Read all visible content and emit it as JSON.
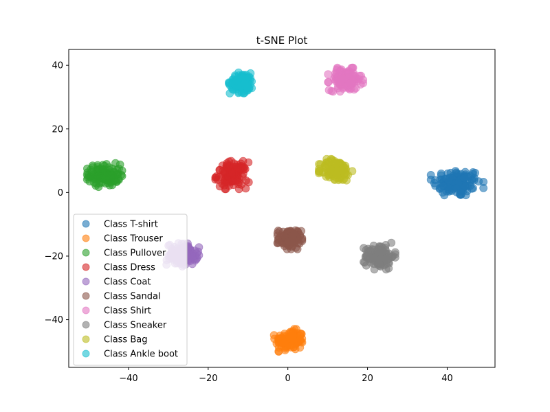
{
  "chart_data": {
    "type": "scatter",
    "title": "t-SNE Plot",
    "xlabel": "",
    "ylabel": "",
    "xlim": [
      -55,
      52
    ],
    "ylim": [
      -55,
      45
    ],
    "xticks": [
      -40,
      -20,
      0,
      20,
      40
    ],
    "yticks": [
      -40,
      -20,
      0,
      20,
      40
    ],
    "xtick_labels": [
      "−40",
      "−20",
      "0",
      "20",
      "40"
    ],
    "ytick_labels": [
      "−40",
      "−20",
      "0",
      "20",
      "40"
    ],
    "grid": false,
    "legend": "lower-left",
    "series": [
      {
        "name": "Class T-shirt",
        "color": "#1f77b4",
        "cluster": {
          "x": 42.5,
          "y": 3.0,
          "sx": 3.0,
          "sy": 2.2,
          "n": 120
        }
      },
      {
        "name": "Class Trouser",
        "color": "#ff7f0e",
        "cluster": {
          "x": 0.5,
          "y": -46.5,
          "sx": 1.8,
          "sy": 1.6,
          "n": 120
        }
      },
      {
        "name": "Class Pullover",
        "color": "#2ca02c",
        "cluster": {
          "x": -46.0,
          "y": 5.5,
          "sx": 2.0,
          "sy": 1.7,
          "n": 120
        }
      },
      {
        "name": "Class Dress",
        "color": "#d62728",
        "cluster": {
          "x": -14.0,
          "y": 5.5,
          "sx": 1.9,
          "sy": 2.0,
          "n": 120
        }
      },
      {
        "name": "Class Coat",
        "color": "#9467bd",
        "cluster": {
          "x": -26.5,
          "y": -19.5,
          "sx": 1.9,
          "sy": 1.7,
          "n": 120
        }
      },
      {
        "name": "Class Sandal",
        "color": "#8c564b",
        "cluster": {
          "x": 0.5,
          "y": -14.5,
          "sx": 1.4,
          "sy": 1.5,
          "n": 120
        }
      },
      {
        "name": "Class Shirt",
        "color": "#e377c2",
        "cluster": {
          "x": 14.5,
          "y": 35.5,
          "sx": 2.0,
          "sy": 1.7,
          "n": 120
        }
      },
      {
        "name": "Class Sneaker",
        "color": "#7f7f7f",
        "cluster": {
          "x": 23.0,
          "y": -20.0,
          "sx": 1.8,
          "sy": 1.9,
          "n": 120
        }
      },
      {
        "name": "Class Bag",
        "color": "#bcbd22",
        "cluster": {
          "x": 12.0,
          "y": 7.0,
          "sx": 1.9,
          "sy": 1.7,
          "n": 120
        }
      },
      {
        "name": "Class Ankle boot",
        "color": "#17becf",
        "cluster": {
          "x": -11.5,
          "y": 34.5,
          "sx": 1.5,
          "sy": 1.5,
          "n": 120
        }
      }
    ]
  }
}
